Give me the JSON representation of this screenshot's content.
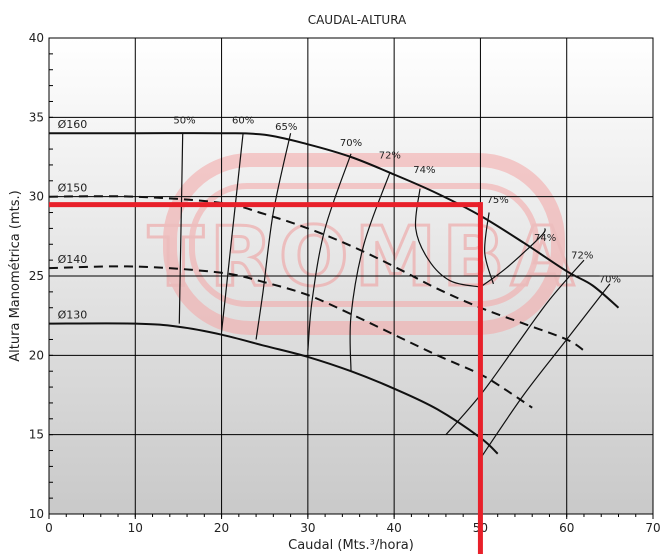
{
  "chart_data": {
    "type": "line",
    "title": "CAUDAL-ALTURA",
    "xlabel": "Caudal (Mts.³/hora)",
    "ylabel": "Altura Manométrica (mts.)",
    "xlim": [
      0,
      70
    ],
    "ylim": [
      10,
      40
    ],
    "xticks": [
      "0",
      "10",
      "20",
      "30",
      "40",
      "50",
      "60",
      "70"
    ],
    "yticks": [
      "10",
      "15",
      "20",
      "25",
      "30",
      "35",
      "40"
    ],
    "grid": true,
    "watermark": "TROMBA",
    "colors": {
      "curve": "#111111",
      "operating_point": "#e8202a",
      "watermark": "#f4a6a6",
      "grid": "#000000"
    },
    "series": [
      {
        "name": "Ø160",
        "style": "solid",
        "x": [
          0,
          10,
          20,
          25,
          30,
          35,
          40,
          45,
          50,
          55,
          60,
          63,
          66
        ],
        "y": [
          34,
          34,
          34,
          33.9,
          33.3,
          32.5,
          31.4,
          30.2,
          28.8,
          27.1,
          25.3,
          24.4,
          23
        ]
      },
      {
        "name": "Ø150",
        "style": "dashed",
        "x": [
          0,
          10,
          20,
          25,
          30,
          35,
          40,
          45,
          50,
          55,
          60,
          62
        ],
        "y": [
          30,
          30,
          29.6,
          28.9,
          28,
          26.9,
          25.6,
          24.2,
          23,
          22,
          21,
          20.3
        ]
      },
      {
        "name": "Ø140",
        "style": "dashed",
        "x": [
          0,
          10,
          20,
          25,
          30,
          35,
          40,
          45,
          50,
          53,
          56
        ],
        "y": [
          25.5,
          25.6,
          25.2,
          24.6,
          23.8,
          22.6,
          21.3,
          20,
          18.8,
          17.8,
          16.7
        ]
      },
      {
        "name": "Ø130",
        "style": "solid",
        "x": [
          0,
          10,
          15,
          20,
          25,
          30,
          35,
          40,
          45,
          50,
          52
        ],
        "y": [
          22,
          22,
          21.8,
          21.3,
          20.6,
          19.9,
          19,
          17.9,
          16.6,
          14.8,
          13.8
        ]
      }
    ],
    "efficiency_lines": [
      {
        "label": "50%",
        "x": [
          15.5,
          15.3,
          15.1
        ],
        "y": [
          34,
          28,
          22
        ]
      },
      {
        "label": "60%",
        "x": [
          22.5,
          21.5,
          20.5,
          20
        ],
        "y": [
          34,
          29,
          24,
          21.5
        ]
      },
      {
        "label": "65%",
        "x": [
          28,
          26,
          24.8,
          24
        ],
        "y": [
          34,
          29,
          24,
          21
        ]
      },
      {
        "label": "70%",
        "x": [
          35,
          32,
          30.5,
          30
        ],
        "y": [
          32.7,
          28,
          23.5,
          20.3
        ]
      },
      {
        "label": "72%",
        "x": [
          39.5,
          36.5,
          35,
          35
        ],
        "y": [
          31.5,
          27,
          22.5,
          19
        ]
      },
      {
        "label": "74%",
        "x": [
          43,
          42.5,
          44,
          46.5,
          50
        ],
        "y": [
          30.5,
          28,
          26,
          24.7,
          24.3
        ]
      },
      {
        "label": "74%",
        "x": [
          50,
          53,
          57,
          57.5
        ],
        "y": [
          24.3,
          25.5,
          27.5,
          28
        ]
      },
      {
        "label": "75%",
        "x": [
          51,
          50.5,
          51.5
        ],
        "y": [
          29,
          26.5,
          24.5
        ]
      },
      {
        "label": "72%",
        "x": [
          62,
          58,
          54,
          50,
          46
        ],
        "y": [
          26,
          23.5,
          20.5,
          17.5,
          15
        ]
      },
      {
        "label": "70%",
        "x": [
          65,
          60,
          55,
          50
        ],
        "y": [
          24.5,
          21,
          17.5,
          13.5
        ]
      }
    ],
    "efficiency_labels": [
      {
        "text": "50%",
        "x": 15.7,
        "y": 34.6
      },
      {
        "text": "60%",
        "x": 22.5,
        "y": 34.6
      },
      {
        "text": "65%",
        "x": 27.5,
        "y": 34.2
      },
      {
        "text": "70%",
        "x": 35,
        "y": 33.2
      },
      {
        "text": "72%",
        "x": 39.5,
        "y": 32.4
      },
      {
        "text": "74%",
        "x": 43.5,
        "y": 31.5
      },
      {
        "text": "75%",
        "x": 52,
        "y": 29.6
      },
      {
        "text": "74%",
        "x": 57.5,
        "y": 27.2
      },
      {
        "text": "72%",
        "x": 61.8,
        "y": 26.1
      },
      {
        "text": "70%",
        "x": 65,
        "y": 24.6
      }
    ],
    "operating_point": {
      "x": 50,
      "y": 29.5
    }
  }
}
